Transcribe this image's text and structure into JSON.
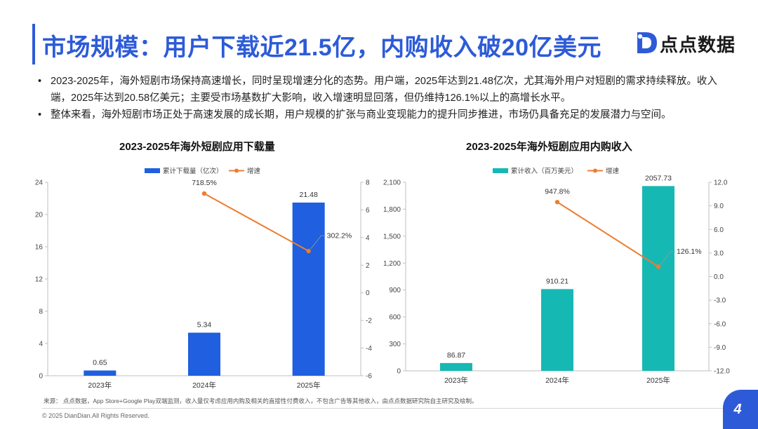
{
  "header": {
    "title": "市场规模：用户下载近21.5亿，内购收入破20亿美元",
    "logo_text": "点点数据"
  },
  "bullets": [
    "2023-2025年，海外短剧市场保持高速增长，同时呈现增速分化的态势。用户端，2025年达到21.48亿次，尤其海外用户对短剧的需求持续释放。收入端，2025年达到20.58亿美元；主要受市场基数扩大影响，收入增速明显回落，但仍维持126.1%以上的高增长水平。",
    "整体来看，海外短剧市场正处于高速发展的成长期，用户规模的扩张与商业变现能力的提升同步推进，市场仍具备充足的发展潜力与空间。"
  ],
  "chart_data": [
    {
      "type": "bar",
      "title": "2023-2025年海外短剧应用下载量",
      "categories": [
        "2023年",
        "2024年",
        "2025年"
      ],
      "series": [
        {
          "name": "累计下载量（亿次）",
          "values": [
            0.65,
            5.34,
            21.48
          ],
          "color": "#1f5fe0",
          "axis": "left",
          "labels": [
            "0.65",
            "5.34",
            "21.48"
          ]
        },
        {
          "name": "增速",
          "values": [
            null,
            7.185,
            3.022
          ],
          "color": "#ed7d31",
          "axis": "right",
          "kind": "line",
          "labels": [
            "",
            "718.5%",
            "302.2%"
          ]
        }
      ],
      "ylim": [
        0,
        24
      ],
      "yticks": [
        "0",
        "4",
        "8",
        "12",
        "16",
        "20",
        "24"
      ],
      "y2lim": [
        -6,
        8
      ],
      "y2ticks": [
        "-6",
        "-4",
        "-2",
        "0",
        "2",
        "4",
        "6",
        "8"
      ]
    },
    {
      "type": "bar",
      "title": "2023-2025年海外短剧应用内购收入",
      "categories": [
        "2023年",
        "2024年",
        "2025年"
      ],
      "series": [
        {
          "name": "累计收入（百万美元）",
          "values": [
            86.87,
            910.21,
            2057.73
          ],
          "color": "#16b8b4",
          "axis": "left",
          "labels": [
            "86.87",
            "910.21",
            "2057.73"
          ]
        },
        {
          "name": "增速",
          "values": [
            null,
            9.478,
            1.261
          ],
          "color": "#ed7d31",
          "axis": "right",
          "kind": "line",
          "labels": [
            "",
            "947.8%",
            "126.1%"
          ]
        }
      ],
      "ylim": [
        0,
        2100
      ],
      "yticks": [
        "0",
        "300",
        "600",
        "900",
        "1,200",
        "1,500",
        "1,800",
        "2,100"
      ],
      "y2lim": [
        -12,
        12
      ],
      "y2ticks": [
        "-12.0",
        "-9.0",
        "-6.0",
        "-3.0",
        "0.0",
        "3.0",
        "6.0",
        "9.0",
        "12.0"
      ]
    }
  ],
  "footer": {
    "source": "来源： 点点数据，App Store+Google Play双端监测，收入量仅考虑应用内购及相关的直接性付费收入，不包含广告等其他收入，由点点数据研究院自主研究及绘制。",
    "copyright": "© 2025 DianDian.All Rights Reserved.",
    "page_number": "4"
  },
  "colors": {
    "brand": "#2d5bd8",
    "bar1": "#1f5fe0",
    "bar2": "#16b8b4",
    "line": "#ed7d31"
  }
}
